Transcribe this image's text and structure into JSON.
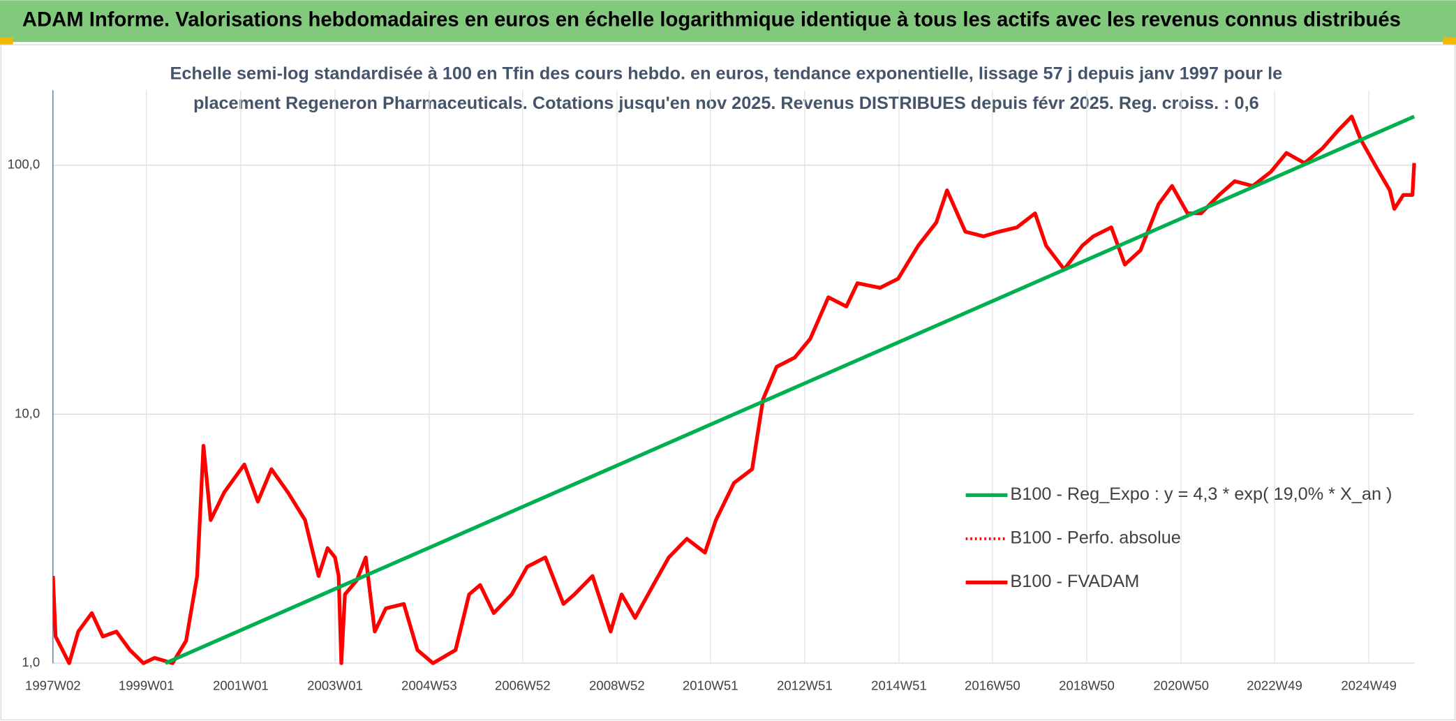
{
  "chart_data": {
    "type": "line",
    "title": "ADAM Informe. Valorisations hebdomadaires en euros en échelle logarithmique identique à tous les actifs avec les revenus connus distribués",
    "subtitle": [
      "Echelle semi-log standardisée à 100 en Tfin des cours hebdo. en euros, tendance exponentielle, lissage 57 j depuis janv 1997 pour le",
      "placement Regeneron Pharmaceuticals. Cotations jusqu'en nov 2025. Revenus DISTRIBUES depuis févr 2025. Reg. croiss. : 0,6"
    ],
    "log_y": true,
    "grid": true,
    "legend": "right",
    "xlim": [
      "1997W02",
      "2025W47"
    ],
    "xticks": [
      "1997W02",
      "1999W01",
      "2001W01",
      "2003W01",
      "2004W53",
      "2006W52",
      "2008W52",
      "2010W51",
      "2012W51",
      "2014W51",
      "2016W50",
      "2018W50",
      "2020W50",
      "2022W49",
      "2024W49"
    ],
    "ylim": [
      1,
      200
    ],
    "yticks": [
      {
        "value": 1,
        "label": "1,0"
      },
      {
        "value": 10,
        "label": "10,0"
      },
      {
        "value": 100,
        "label": "100,0"
      }
    ],
    "series": [
      {
        "name": "B100 - Reg_Expo : y = 4,3 * exp( 19,0% *  X_an )",
        "color": "#00b050",
        "style": "solid",
        "x": [
          "1999W22",
          "2025W47"
        ],
        "values": [
          1.0,
          157
        ]
      },
      {
        "name": "B100 - Perfo. absolue",
        "color": "#ff0000",
        "style": "dotted",
        "x": [
          "1997W02",
          "1997W05",
          "1997W20",
          "1997W30",
          "1997W45",
          "1998W05",
          "1998W20",
          "1998W35",
          "1998W50",
          "1999W10",
          "1999W30",
          "1999W45",
          "2000W05",
          "2000W12",
          "2000W20",
          "2000W35",
          "2001W05",
          "2001W20",
          "2001W35",
          "2002W01",
          "2002W20",
          "2002W35",
          "2002W45",
          "2003W01",
          "2003W05",
          "2003W08",
          "2003W12",
          "2003W25",
          "2003W35",
          "2003W45",
          "2004W05",
          "2004W25",
          "2004W40",
          "2005W05",
          "2005W30",
          "2005W45",
          "2006W05",
          "2006W20",
          "2006W40",
          "2007W05",
          "2007W25",
          "2007W45",
          "2008W05",
          "2008W25",
          "2008W45",
          "2009W05",
          "2009W20",
          "2009W40",
          "2010W05",
          "2010W25",
          "2010W45",
          "2011W05",
          "2011W25",
          "2011W45",
          "2012W05",
          "2012W20",
          "2012W40",
          "2013W05",
          "2013W25",
          "2013W45",
          "2014W05",
          "2014W30",
          "2014W50",
          "2015W20",
          "2015W40",
          "2015W52",
          "2016W20",
          "2016W40",
          "2017W05",
          "2017W25",
          "2017W45",
          "2018W05",
          "2018W25",
          "2018W45",
          "2019W05",
          "2019W25",
          "2019W40",
          "2020W05",
          "2020W25",
          "2020W40",
          "2021W05",
          "2021W20",
          "2021W40",
          "2022W05",
          "2022W25",
          "2022W45",
          "2023W10",
          "2023W30",
          "2023W50",
          "2024W15",
          "2024W30",
          "2024W40",
          "2025W05",
          "2025W20",
          "2025W25",
          "2025W35",
          "2025W45",
          "2025W47"
        ],
        "values": [
          2.24,
          1.28,
          1.0,
          1.34,
          1.59,
          1.28,
          1.34,
          1.13,
          1.0,
          1.05,
          1.0,
          1.23,
          2.24,
          7.47,
          3.76,
          4.86,
          6.28,
          4.46,
          6.02,
          4.86,
          3.76,
          2.24,
          2.9,
          2.66,
          2.24,
          1.0,
          1.89,
          2.15,
          2.66,
          1.34,
          1.66,
          1.73,
          1.13,
          1.0,
          1.13,
          1.89,
          2.06,
          1.59,
          1.89,
          2.44,
          2.66,
          1.73,
          1.89,
          2.24,
          1.34,
          1.89,
          1.52,
          2.06,
          2.66,
          3.16,
          2.78,
          3.76,
          5.3,
          6.02,
          11.5,
          15.5,
          16.9,
          20.1,
          29.5,
          27.1,
          33.6,
          32.2,
          35.0,
          47.5,
          58.9,
          79.3,
          54.1,
          51.8,
          54.1,
          56.3,
          64.1,
          47.5,
          38.2,
          47.5,
          51.8,
          56.3,
          39.9,
          45.5,
          69.7,
          82.6,
          64.1,
          64.1,
          76.0,
          86.3,
          82.6,
          94.2,
          112,
          102,
          117,
          138,
          157,
          127,
          98.3,
          79.3,
          66.8,
          76.0,
          76.0,
          102
        ]
      },
      {
        "name": "B100 - FVADAM",
        "color": "#ff0000",
        "style": "solid",
        "x": [
          "1997W02",
          "1997W05",
          "1997W20",
          "1997W30",
          "1997W45",
          "1998W05",
          "1998W20",
          "1998W35",
          "1998W50",
          "1999W10",
          "1999W30",
          "1999W45",
          "2000W05",
          "2000W12",
          "2000W20",
          "2000W35",
          "2001W05",
          "2001W20",
          "2001W35",
          "2002W01",
          "2002W20",
          "2002W35",
          "2002W45",
          "2003W01",
          "2003W05",
          "2003W08",
          "2003W12",
          "2003W25",
          "2003W35",
          "2003W45",
          "2004W05",
          "2004W25",
          "2004W40",
          "2005W05",
          "2005W30",
          "2005W45",
          "2006W05",
          "2006W20",
          "2006W40",
          "2007W05",
          "2007W25",
          "2007W45",
          "2008W05",
          "2008W25",
          "2008W45",
          "2009W05",
          "2009W20",
          "2009W40",
          "2010W05",
          "2010W25",
          "2010W45",
          "2011W05",
          "2011W25",
          "2011W45",
          "2012W05",
          "2012W20",
          "2012W40",
          "2013W05",
          "2013W25",
          "2013W45",
          "2014W05",
          "2014W30",
          "2014W50",
          "2015W20",
          "2015W40",
          "2015W52",
          "2016W20",
          "2016W40",
          "2017W05",
          "2017W25",
          "2017W45",
          "2018W05",
          "2018W25",
          "2018W45",
          "2019W05",
          "2019W25",
          "2019W40",
          "2020W05",
          "2020W25",
          "2020W40",
          "2021W05",
          "2021W20",
          "2021W40",
          "2022W05",
          "2022W25",
          "2022W45",
          "2023W10",
          "2023W30",
          "2023W50",
          "2024W15",
          "2024W30",
          "2024W40",
          "2025W05",
          "2025W20",
          "2025W25",
          "2025W35",
          "2025W45",
          "2025W47"
        ],
        "values": [
          2.24,
          1.28,
          1.0,
          1.34,
          1.59,
          1.28,
          1.34,
          1.13,
          1.0,
          1.05,
          1.0,
          1.23,
          2.24,
          7.47,
          3.76,
          4.86,
          6.28,
          4.46,
          6.02,
          4.86,
          3.76,
          2.24,
          2.9,
          2.66,
          2.24,
          1.0,
          1.89,
          2.15,
          2.66,
          1.34,
          1.66,
          1.73,
          1.13,
          1.0,
          1.13,
          1.89,
          2.06,
          1.59,
          1.89,
          2.44,
          2.66,
          1.73,
          1.89,
          2.24,
          1.34,
          1.89,
          1.52,
          2.06,
          2.66,
          3.16,
          2.78,
          3.76,
          5.3,
          6.02,
          11.5,
          15.5,
          16.9,
          20.1,
          29.5,
          27.1,
          33.6,
          32.2,
          35.0,
          47.5,
          58.9,
          79.3,
          54.1,
          51.8,
          54.1,
          56.3,
          64.1,
          47.5,
          38.2,
          47.5,
          51.8,
          56.3,
          39.9,
          45.5,
          69.7,
          82.6,
          64.1,
          64.1,
          76.0,
          86.3,
          82.6,
          94.2,
          112,
          102,
          117,
          138,
          157,
          127,
          98.3,
          79.3,
          66.8,
          76.0,
          76.0,
          102
        ]
      }
    ]
  }
}
